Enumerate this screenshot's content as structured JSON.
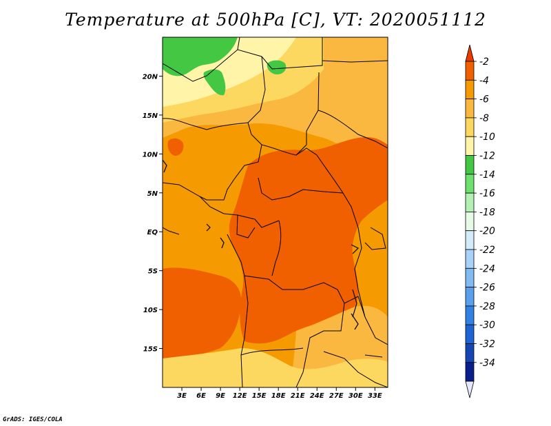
{
  "title": "Temperature at 500hPa [C], VT: 2020051112",
  "credit": "GrADS: IGES/COLA",
  "map": {
    "lon_range": [
      0,
      35
    ],
    "lat_range": [
      -20,
      25
    ],
    "x_ticks": [
      {
        "lon": 3,
        "label": "3E"
      },
      {
        "lon": 6,
        "label": "6E"
      },
      {
        "lon": 9,
        "label": "9E"
      },
      {
        "lon": 12,
        "label": "12E"
      },
      {
        "lon": 15,
        "label": "15E"
      },
      {
        "lon": 18,
        "label": "18E"
      },
      {
        "lon": 21,
        "label": "21E"
      },
      {
        "lon": 24,
        "label": "24E"
      },
      {
        "lon": 27,
        "label": "27E"
      },
      {
        "lon": 30,
        "label": "30E"
      },
      {
        "lon": 33,
        "label": "33E"
      }
    ],
    "y_ticks": [
      {
        "lat": 20,
        "label": "20N"
      },
      {
        "lat": 15,
        "label": "15N"
      },
      {
        "lat": 10,
        "label": "10N"
      },
      {
        "lat": 5,
        "label": "5N"
      },
      {
        "lat": 0,
        "label": "EQ"
      },
      {
        "lat": -5,
        "label": "5S"
      },
      {
        "lat": -10,
        "label": "10S"
      },
      {
        "lat": -15,
        "label": "15S"
      }
    ],
    "colors": {
      "warm_core": "#f06000",
      "orange": "#f59a00",
      "light_orange": "#fab840",
      "pale_orange": "#fdd860",
      "pale_yellow": "#fff4a8",
      "green": "#44c844",
      "border": "#000000"
    }
  },
  "colorbar": {
    "labels": [
      "-2",
      "-4",
      "-6",
      "-8",
      "-10",
      "-12",
      "-14",
      "-16",
      "-18",
      "-20",
      "-22",
      "-24",
      "-26",
      "-28",
      "-30",
      "-32",
      "-34"
    ],
    "top_arrow_color": "#e63c00",
    "bottom_arrow_color": "#e6e6ff",
    "colors": [
      "#f06000",
      "#f59a00",
      "#fab840",
      "#fdd860",
      "#fff4a8",
      "#44c844",
      "#6ee06e",
      "#b4f0b4",
      "#e6fae6",
      "#d4ecfa",
      "#a8d2f8",
      "#82baf2",
      "#5aa0ec",
      "#3282e6",
      "#1e64d2",
      "#1446b4",
      "#0a1e8c"
    ]
  }
}
